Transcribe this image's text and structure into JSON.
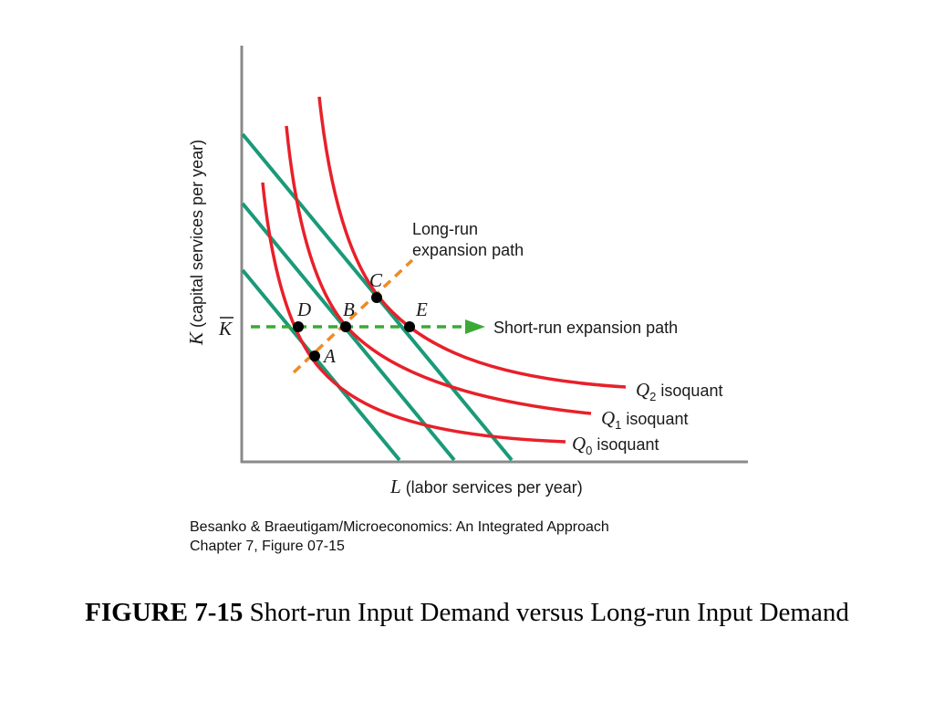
{
  "figure": {
    "axes": {
      "y_variable": "K",
      "y_label": " (capital services per year)",
      "x_variable": "L",
      "x_label": " (labor services per year)",
      "k_bar": "K"
    },
    "isoquants": [
      {
        "name": "Q",
        "subscript": "0",
        "label": " isoquant",
        "color": "#e8202a"
      },
      {
        "name": "Q",
        "subscript": "1",
        "label": " isoquant",
        "color": "#e8202a"
      },
      {
        "name": "Q",
        "subscript": "2",
        "label": " isoquant",
        "color": "#e8202a"
      }
    ],
    "isocost_color": "#1a9a78",
    "long_run_path": {
      "label_line1": "Long-run",
      "label_line2": "expansion path",
      "color": "#f08a24"
    },
    "short_run_path": {
      "label": "Short-run expansion path",
      "color": "#3aaa35"
    },
    "points": [
      "A",
      "B",
      "C",
      "D",
      "E"
    ]
  },
  "credit": {
    "line1": "Besanko & Braeutigam/Microeconomics: An Integrated Approach",
    "line2": "Chapter 7, Figure 07-15"
  },
  "caption": {
    "number": "FIGURE 7-15",
    "text": " Short-run Input Demand versus Long-run Input Demand"
  }
}
